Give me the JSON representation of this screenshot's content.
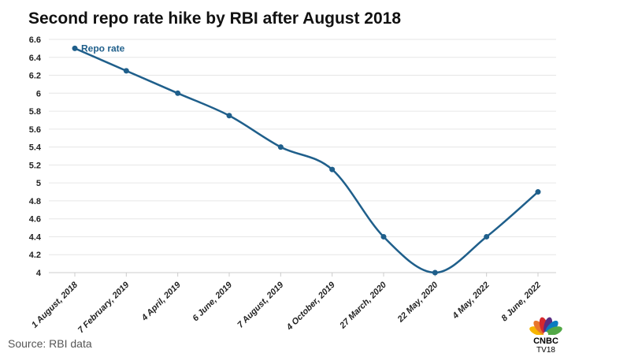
{
  "chart_data": {
    "type": "line",
    "title": "Second repo rate hike by RBI after August 2018",
    "categories": [
      "1 August, 2018",
      "7 February, 2019",
      "4 April, 2019",
      "6 June, 2019",
      "7 August, 2019",
      "4 October, 2019",
      "27 March, 2020",
      "22 May, 2020",
      "4 May, 2022",
      "8 June, 2022"
    ],
    "series": [
      {
        "name": "Repo rate",
        "values": [
          6.5,
          6.25,
          6.0,
          5.75,
          5.4,
          5.15,
          4.4,
          4.0,
          4.4,
          4.9
        ],
        "color": "#1f5f8b"
      }
    ],
    "xlabel": "",
    "ylabel": "",
    "ylim": [
      4,
      6.6
    ],
    "yticks": [
      4,
      4.2,
      4.4,
      4.6,
      4.8,
      5,
      5.2,
      5.4,
      5.6,
      5.8,
      6,
      6.2,
      6.4,
      6.6
    ],
    "ytick_labels": [
      "4",
      "4.2",
      "4.4",
      "4.6",
      "4.8",
      "5",
      "5.2",
      "5.4",
      "5.6",
      "5.8",
      "6",
      "6.2",
      "6.4",
      "6.6"
    ],
    "grid": true,
    "legend": "inline label at first point"
  },
  "source": "Source: RBI data",
  "logo": {
    "text": "CNBC",
    "sub": "TV18"
  }
}
